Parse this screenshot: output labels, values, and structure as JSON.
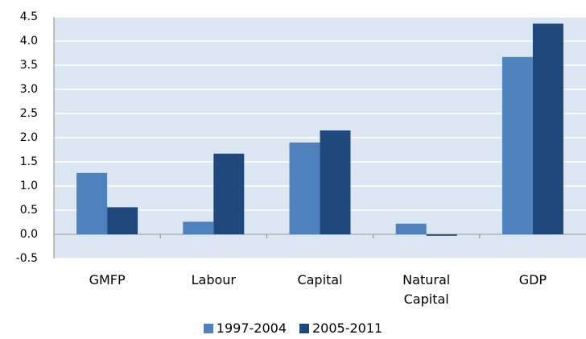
{
  "chart_data": {
    "type": "bar",
    "categories": [
      "GMFP",
      "Labour",
      "Capital",
      "Natural Capital",
      "GDP"
    ],
    "series": [
      {
        "name": "1997-2004",
        "color": "#4f81bd",
        "values": [
          1.27,
          0.26,
          1.9,
          0.22,
          3.67
        ]
      },
      {
        "name": "2005-2011",
        "color": "#1f497d",
        "values": [
          0.56,
          1.67,
          2.15,
          -0.03,
          4.36
        ]
      }
    ],
    "ylim": [
      -0.5,
      4.5
    ],
    "yticks": [
      -0.5,
      {
        "value": 0,
        "label": "0.0"
      },
      0.5,
      {
        "value": 1,
        "label": "1.0"
      },
      1.5,
      {
        "value": 2,
        "label": "2.0"
      },
      2.5,
      {
        "value": 3,
        "label": "3.0"
      },
      3.5,
      {
        "value": 4,
        "label": "4.0"
      },
      4.5
    ],
    "grid": true,
    "legend": "bottom"
  }
}
